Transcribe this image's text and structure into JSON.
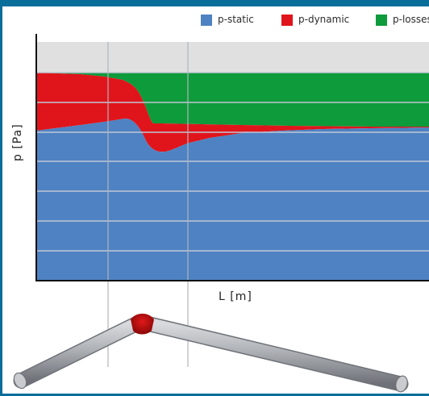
{
  "chart_data": {
    "type": "area",
    "xlabel": "L [m]",
    "ylabel": "p [Pa]",
    "legend_position": "top",
    "grid": true,
    "series": [
      {
        "name": "p-static",
        "color": "#4e82c2"
      },
      {
        "name": "p-dynamic",
        "color": "#e0151b"
      },
      {
        "name": "p-losses",
        "color": "#0e9b3b"
      }
    ],
    "background_band_color": "#e0e0e0"
  },
  "diagram": {
    "pipe_color": "#a9acb2",
    "bend_color": "#c01010"
  }
}
